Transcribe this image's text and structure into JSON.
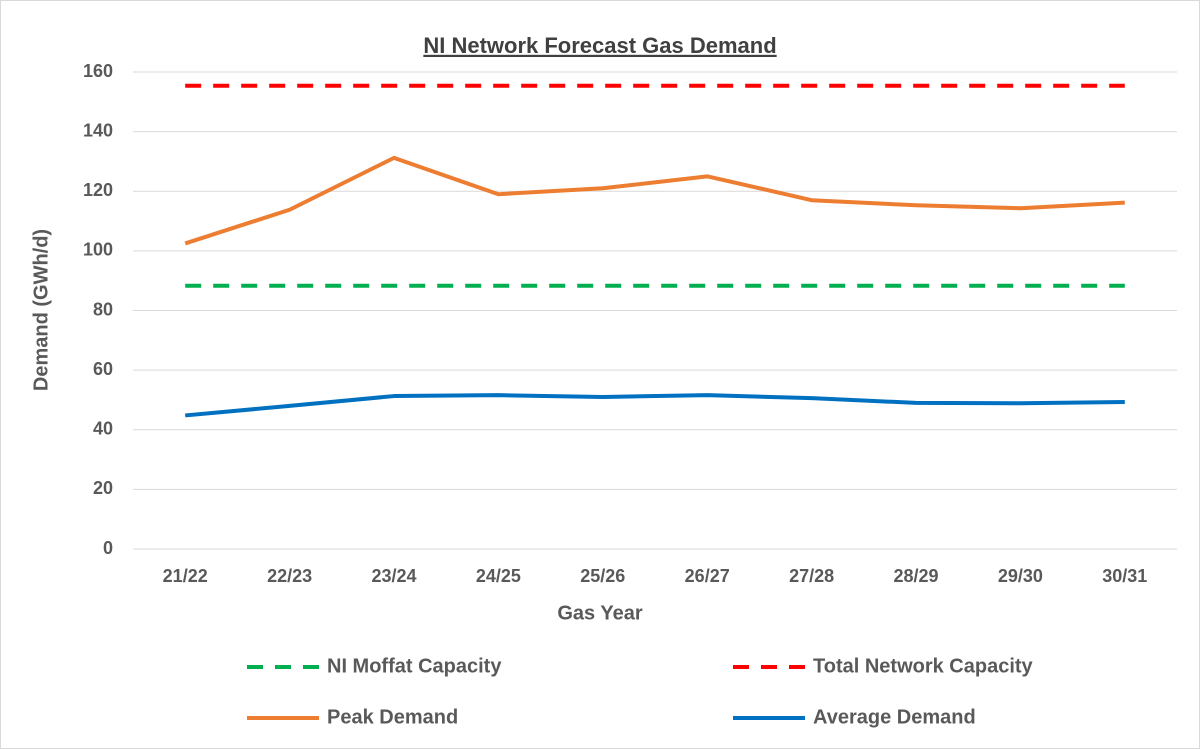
{
  "chart_data": {
    "type": "line",
    "title": "NI Network Forecast Gas Demand",
    "x_label": "Gas Year",
    "y_label": "Demand (GWh/d)",
    "categories": [
      "21/22",
      "22/23",
      "23/24",
      "24/25",
      "25/26",
      "26/27",
      "27/28",
      "28/29",
      "29/30",
      "30/31"
    ],
    "series": [
      {
        "name": "NI Moffat Capacity",
        "color": "#00b050",
        "dashed": true,
        "values": [
          88.3,
          88.3,
          88.3,
          88.3,
          88.3,
          88.3,
          88.3,
          88.3,
          88.3,
          88.3
        ]
      },
      {
        "name": "Total Network Capacity",
        "color": "#ff0000",
        "dashed": true,
        "values": [
          155.4,
          155.4,
          155.4,
          155.4,
          155.4,
          155.4,
          155.4,
          155.4,
          155.4,
          155.4
        ]
      },
      {
        "name": "Peak Demand",
        "color": "#ed7d31",
        "dashed": false,
        "values": [
          102.5,
          113.8,
          131.2,
          119,
          121,
          125,
          117,
          115.3,
          114.3,
          116.2
        ]
      },
      {
        "name": "Average Demand",
        "color": "#0070c0",
        "dashed": false,
        "values": [
          44.8,
          48,
          51.3,
          51.6,
          51,
          51.6,
          50.6,
          49,
          48.9,
          49.3
        ]
      }
    ],
    "ylim": [
      0,
      160
    ],
    "yticks": [
      0,
      20,
      40,
      60,
      80,
      100,
      120,
      140,
      160
    ],
    "grid": true,
    "legend": "bottom"
  }
}
